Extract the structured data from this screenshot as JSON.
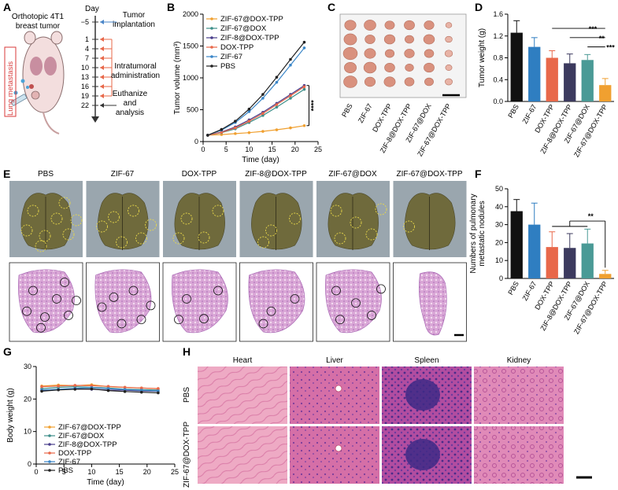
{
  "panels": {
    "A": {
      "label": "A",
      "title": "Orthotopic 4T1\nbreast tumor",
      "side_label": "Lung metastasis",
      "timeline_header": "Day",
      "days": [
        "−5",
        "1",
        "4",
        "7",
        "10",
        "13",
        "16",
        "19",
        "22"
      ],
      "events": [
        "Tumor\nimplantation",
        "Intratumoral\nadministration",
        "Euthanize\nand\nanalysis"
      ]
    },
    "C": {
      "label": "C",
      "groups": [
        "PBS",
        "ZIF-67",
        "DOX-TPP",
        "ZIF-8@DOX-TPP",
        "ZIF-67@DOX",
        "ZIF-67@DOX-TPP"
      ]
    },
    "E": {
      "label": "E",
      "groups": [
        "PBS",
        "ZIF-67",
        "DOX-TPP",
        "ZIF-8@DOX-TPP",
        "ZIF-67@DOX",
        "ZIF-67@DOX-TPP"
      ]
    },
    "H": {
      "label": "H",
      "organs": [
        "Heart",
        "Liver",
        "Spleen",
        "Kidney"
      ],
      "rows": [
        "PBS",
        "ZIF-67@DOX-TPP"
      ]
    }
  },
  "chart_data": [
    {
      "id": "B",
      "type": "line",
      "label": "B",
      "xlabel": "Time (day)",
      "ylabel": "Tumor volume (mm³)",
      "xlim": [
        0,
        25
      ],
      "ylim": [
        0,
        2000
      ],
      "xticks": [
        0,
        5,
        10,
        15,
        20,
        25
      ],
      "yticks": [
        0,
        500,
        1000,
        1500,
        2000
      ],
      "x": [
        1,
        4,
        7,
        10,
        13,
        16,
        19,
        22
      ],
      "annotation": "****",
      "series": [
        {
          "name": "ZIF-67@DOX-TPP",
          "color": "#f0a030",
          "values": [
            100,
            110,
            125,
            140,
            160,
            185,
            215,
            250
          ]
        },
        {
          "name": "ZIF-67@DOX",
          "color": "#3e8f8a",
          "values": [
            100,
            140,
            200,
            300,
            410,
            540,
            680,
            820
          ]
        },
        {
          "name": "ZIF-8@DOX-TPP",
          "color": "#4a3e8c",
          "values": [
            100,
            150,
            230,
            340,
            460,
            600,
            740,
            880
          ]
        },
        {
          "name": "DOX-TPP",
          "color": "#e8684a",
          "values": [
            100,
            145,
            215,
            320,
            440,
            580,
            720,
            860
          ]
        },
        {
          "name": "ZIF-67",
          "color": "#3a86c8",
          "values": [
            100,
            180,
            300,
            470,
            680,
            930,
            1200,
            1470
          ]
        },
        {
          "name": "PBS",
          "color": "#222222",
          "values": [
            100,
            190,
            320,
            510,
            740,
            1010,
            1290,
            1560
          ]
        }
      ]
    },
    {
      "id": "D",
      "type": "bar",
      "label": "D",
      "ylabel": "Tumor weight (g)",
      "ylim": [
        0,
        1.6
      ],
      "yticks": [
        0,
        0.4,
        0.8,
        1.2,
        1.6
      ],
      "categories": [
        "PBS",
        "ZIF-67",
        "DOX-TPP",
        "ZIF-8@DOX-TPP",
        "ZIF-67@DOX",
        "ZIF-67@DOX-TPP"
      ],
      "values": [
        1.26,
        1.0,
        0.8,
        0.7,
        0.76,
        0.3
      ],
      "errors": [
        0.22,
        0.17,
        0.13,
        0.17,
        0.1,
        0.12
      ],
      "colors": [
        "#111111",
        "#2f7ec1",
        "#e8684a",
        "#3c3a5e",
        "#4a9a96",
        "#f0a030"
      ],
      "significance": [
        "***",
        "**",
        "***"
      ]
    },
    {
      "id": "F",
      "type": "bar",
      "label": "F",
      "ylabel": "Numbers of pulmonary\nmetastatic nodules",
      "ylim": [
        0,
        50
      ],
      "yticks": [
        0,
        10,
        20,
        30,
        40,
        50
      ],
      "categories": [
        "PBS",
        "ZIF-67",
        "DOX-TPP",
        "ZIF-8@DOX-TPP",
        "ZIF-67@DOX",
        "ZIF-67@DOX-TPP"
      ],
      "values": [
        37.5,
        30,
        17.5,
        17,
        19.5,
        2.5
      ],
      "errors": [
        6.5,
        12,
        8.5,
        8,
        8,
        2
      ],
      "colors": [
        "#111111",
        "#2f7ec1",
        "#e8684a",
        "#3c3a5e",
        "#4a9a96",
        "#f0a030"
      ],
      "significance": [
        "**"
      ]
    },
    {
      "id": "G",
      "type": "line",
      "label": "G",
      "xlabel": "Time (day)",
      "ylabel": "Body weight (g)",
      "xlim": [
        0,
        25
      ],
      "ylim": [
        0,
        30
      ],
      "xticks": [
        0,
        5,
        10,
        15,
        20,
        25
      ],
      "yticks": [
        0,
        10,
        20,
        30
      ],
      "x": [
        1,
        4,
        7,
        10,
        13,
        16,
        19,
        22
      ],
      "series": [
        {
          "name": "ZIF-67@DOX-TPP",
          "color": "#f0a030",
          "values": [
            24.0,
            24.3,
            24.1,
            24.4,
            23.8,
            23.6,
            23.4,
            23.2
          ]
        },
        {
          "name": "ZIF-67@DOX",
          "color": "#3e8f8a",
          "values": [
            23.2,
            23.6,
            23.8,
            23.6,
            23.4,
            23.0,
            22.9,
            22.8
          ]
        },
        {
          "name": "ZIF-8@DOX-TPP",
          "color": "#4a3e8c",
          "values": [
            22.6,
            22.9,
            23.1,
            23.0,
            22.8,
            22.7,
            22.5,
            22.4
          ]
        },
        {
          "name": "DOX-TPP",
          "color": "#e8684a",
          "values": [
            23.8,
            24.0,
            24.2,
            24.1,
            23.9,
            23.6,
            23.4,
            23.2
          ]
        },
        {
          "name": "ZIF-67",
          "color": "#3a86c8",
          "values": [
            22.8,
            23.0,
            23.3,
            23.5,
            23.2,
            22.9,
            22.7,
            22.5
          ]
        },
        {
          "name": "PBS",
          "color": "#222222",
          "values": [
            22.4,
            22.8,
            23.0,
            23.1,
            22.6,
            22.3,
            22.1,
            21.9
          ]
        }
      ]
    }
  ]
}
